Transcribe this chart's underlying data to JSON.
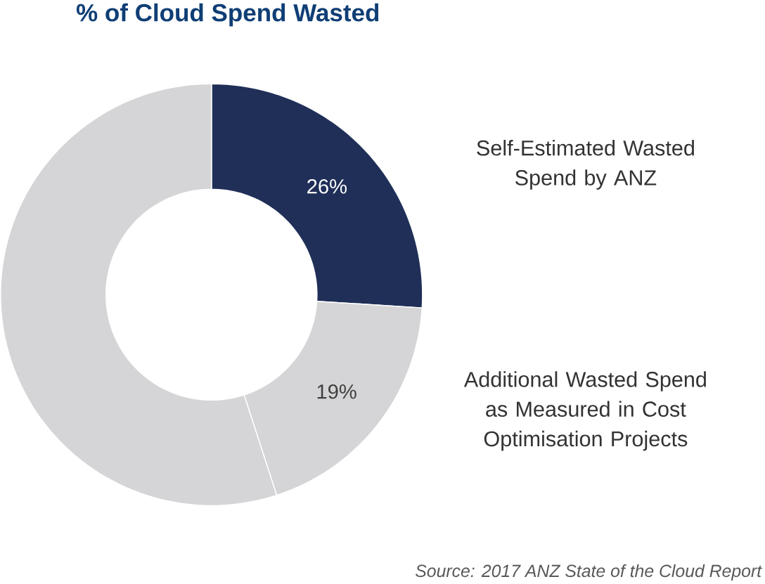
{
  "chart_data": {
    "type": "donut",
    "title": "% of Cloud Spend Wasted",
    "categories": [
      "Self-Estimated Wasted Spend by ANZ",
      "Additional Wasted Spend as Measured in Cost Optimisation Projects",
      null
    ],
    "values": [
      26,
      19,
      55
    ],
    "colors": [
      "#1f2f58",
      "#d5d5d7",
      "#d5d5d7"
    ],
    "value_labels": [
      "26%",
      "19%",
      null
    ],
    "annotations": [
      "Source: 2017 ANZ State of the Cloud Report"
    ]
  }
}
